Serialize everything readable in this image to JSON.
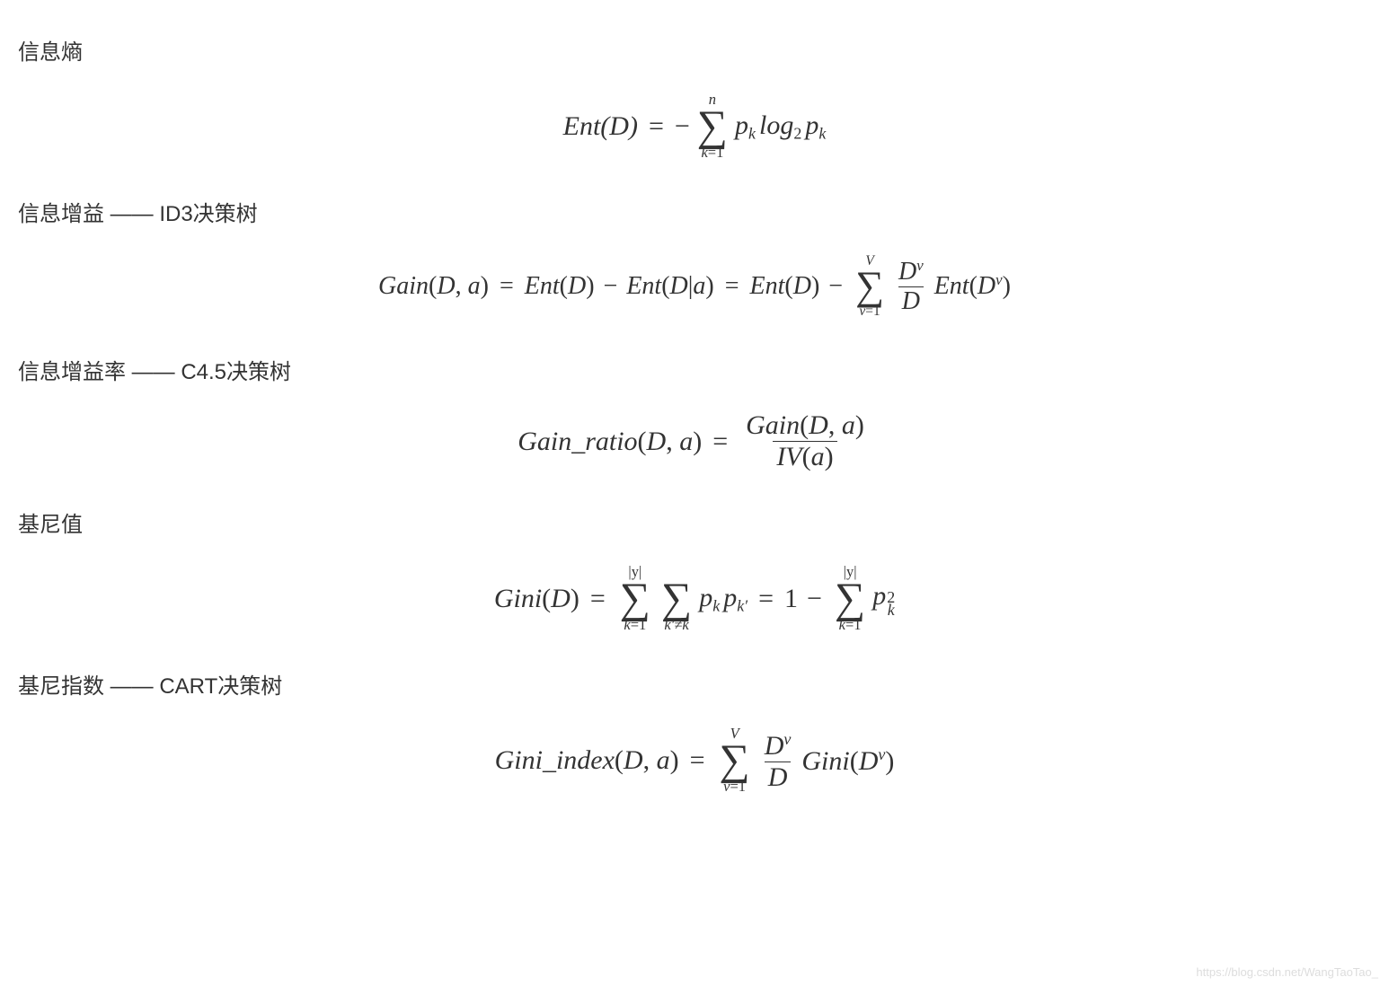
{
  "sections": {
    "entropy": {
      "title": "信息熵"
    },
    "gain": {
      "title": "信息增益 —— ID3决策树"
    },
    "gainratio": {
      "title": "信息增益率 —— C4.5决策树"
    },
    "gini": {
      "title": "基尼值"
    },
    "giniindex": {
      "title": "基尼指数 —— CART决策树"
    }
  },
  "formulas": {
    "entropy": {
      "lhs": "Ent(D)",
      "eq": "=",
      "neg": "−",
      "sum_top": "n",
      "sum_bot_var": "k",
      "sum_bot_eq": "=",
      "sum_bot_from": "1",
      "p": "p",
      "k": "k",
      "log": "log",
      "two": "2"
    },
    "gain": {
      "Gain": "Gain",
      "D": "D",
      "a": "a",
      "Ent": "Ent",
      "eq": "=",
      "minus": "−",
      "bar": "|",
      "sum_top": "V",
      "sum_bot_var": "v",
      "sum_bot_from": "1",
      "Dv_sup": "v"
    },
    "gainratio": {
      "lhs1": "Gain",
      "us": "_",
      "lhs2": "ratio",
      "D": "D",
      "a": "a",
      "eq": "=",
      "num1": "Gain",
      "IV": "IV"
    },
    "gini": {
      "Gini": "Gini",
      "D": "D",
      "eq": "=",
      "sum_top": "|y|",
      "sum_bot_var": "k",
      "sum_bot_from": "1",
      "sum2_bot": "k′≠k",
      "p": "p",
      "k": "k",
      "kprime": "k′",
      "one": "1",
      "minus": "−",
      "two": "2"
    },
    "giniindex": {
      "Gini": "Gini",
      "us": "_",
      "index": "index",
      "D": "D",
      "a": "a",
      "eq": "=",
      "sum_top": "V",
      "sum_bot_var": "v",
      "sum_bot_from": "1",
      "v": "v"
    }
  },
  "watermark": "https://blog.csdn.net/WangTaoTao_",
  "style": {
    "text_color": "#333333",
    "background": "#ffffff",
    "title_fontsize": 24,
    "formula_fontsize": 30,
    "watermark_color": "#dddddd"
  }
}
